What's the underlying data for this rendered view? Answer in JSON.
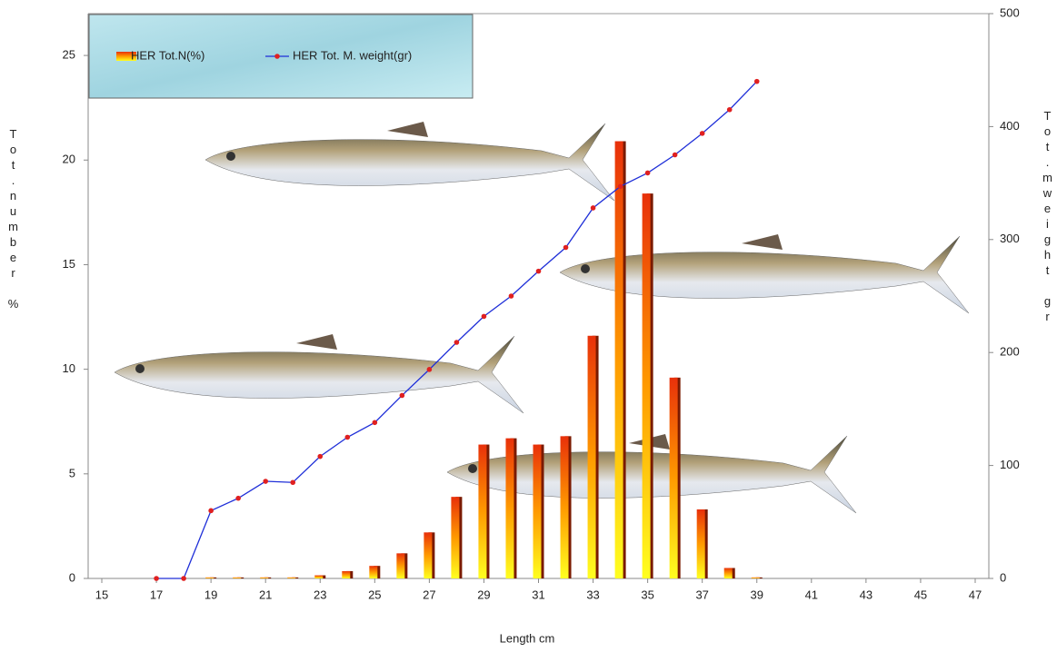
{
  "chart_data": {
    "type": "bar-line",
    "x": [
      17,
      18,
      19,
      20,
      21,
      22,
      23,
      24,
      25,
      26,
      27,
      28,
      29,
      30,
      31,
      32,
      33,
      34,
      35,
      36,
      37,
      38,
      39
    ],
    "series": [
      {
        "name": "HER Tot.N(%)",
        "type": "bar",
        "color": "#ff7a00",
        "values": [
          0,
          0,
          0.05,
          0.05,
          0.05,
          0.05,
          0.15,
          0.35,
          0.6,
          1.2,
          2.2,
          3.9,
          6.4,
          6.7,
          6.4,
          6.8,
          11.6,
          20.9,
          18.4,
          9.6,
          3.3,
          0.5,
          0.05
        ]
      },
      {
        "name": "HER Tot. M. weight(gr)",
        "type": "line",
        "axis": "y2",
        "color": "#1f2fd8",
        "marker_color": "#e02020",
        "values": [
          0,
          0,
          60,
          71,
          86,
          85,
          108,
          125,
          138,
          162,
          185,
          209,
          232,
          250,
          272,
          293,
          328,
          347,
          359,
          375,
          394,
          415,
          440
        ]
      }
    ],
    "xlabel": "Length cm",
    "ylabel": "Tot.number %",
    "y2label": "Tot.mweight gr",
    "xlim": [
      14.5,
      47.5
    ],
    "xticks": [
      15,
      17,
      19,
      21,
      23,
      25,
      27,
      29,
      31,
      33,
      35,
      37,
      39,
      41,
      43,
      45,
      47
    ],
    "ylim": [
      0,
      27
    ],
    "yticks": [
      0,
      5,
      10,
      15,
      20,
      25
    ],
    "y2lim": [
      0,
      500
    ],
    "y2ticks": [
      0,
      100,
      200,
      300,
      400,
      500
    ]
  }
}
